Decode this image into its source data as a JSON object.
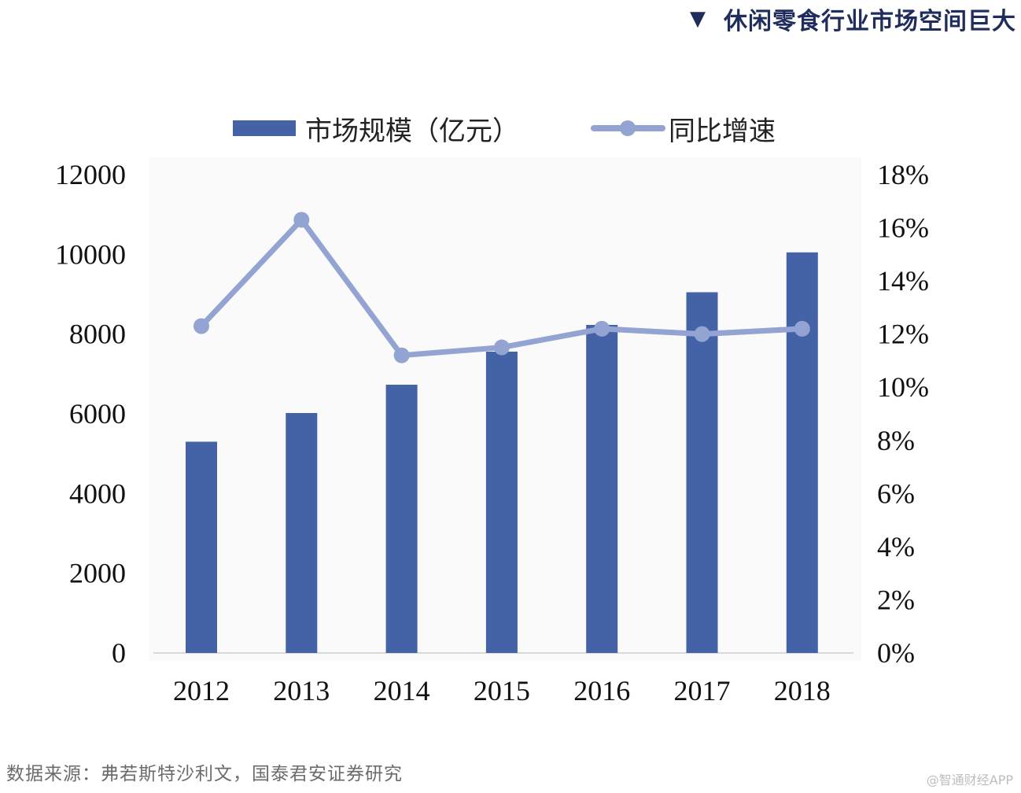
{
  "header": {
    "marker": "▼",
    "title": "休闲零食行业市场空间巨大"
  },
  "chart_data": {
    "type": "bar+line",
    "categories": [
      "2012",
      "2013",
      "2014",
      "2015",
      "2016",
      "2017",
      "2018"
    ],
    "series": [
      {
        "name": "市场规模（亿元）",
        "type": "bar",
        "axis": "left",
        "values": [
          5300,
          6020,
          6730,
          7560,
          8230,
          9050,
          10050
        ]
      },
      {
        "name": "同比增速",
        "type": "line",
        "axis": "right",
        "values": [
          12.3,
          16.3,
          11.2,
          11.5,
          12.2,
          12.0,
          12.2
        ]
      }
    ],
    "yleft": {
      "lim": [
        0,
        12000
      ],
      "ticks": [
        "0",
        "2000",
        "4000",
        "6000",
        "8000",
        "10000",
        "12000"
      ]
    },
    "yright": {
      "lim": [
        0,
        18
      ],
      "ticks": [
        "0%",
        "2%",
        "4%",
        "6%",
        "8%",
        "10%",
        "12%",
        "14%",
        "16%",
        "18%"
      ]
    },
    "colors": {
      "bar": "#4462a6",
      "line": "#93a4d2"
    },
    "legend": {
      "position": "top-center"
    }
  },
  "footer": {
    "source": "数据来源：弗若斯特沙利文，国泰君安证券研究",
    "watermark": "@智通财经APP"
  }
}
